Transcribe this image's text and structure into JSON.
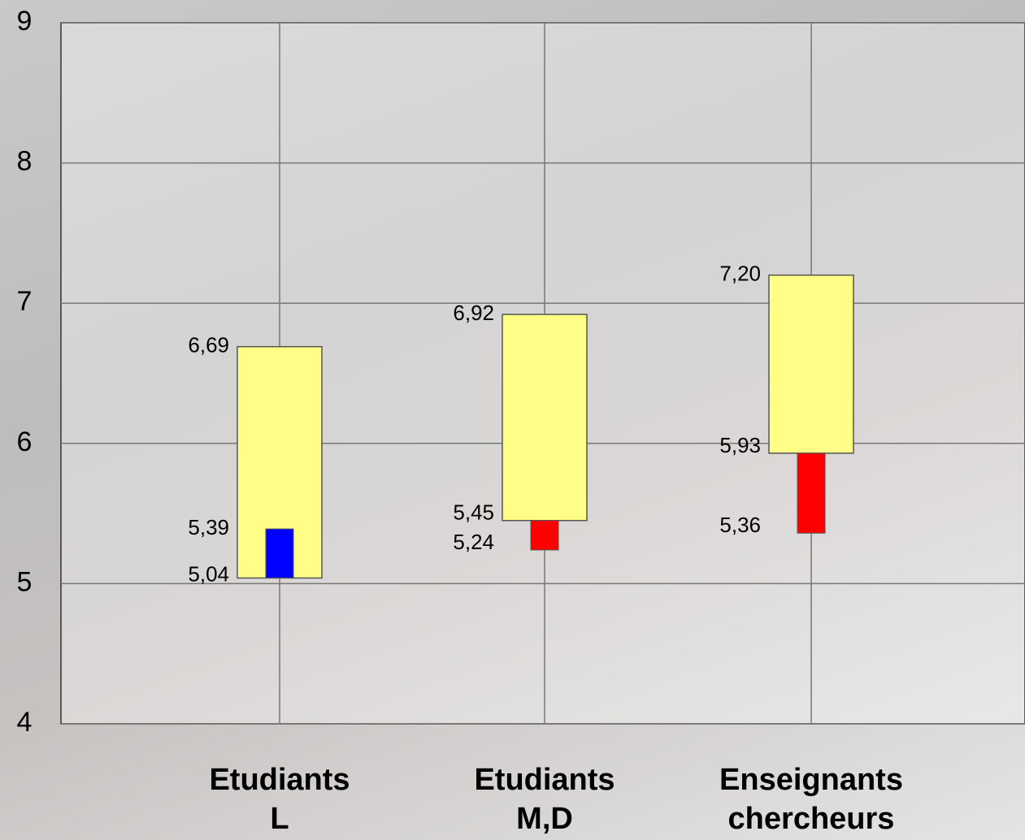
{
  "chart_data": {
    "type": "range_bar",
    "categories": [
      "Etudiants\nL",
      "Etudiants\nM,D",
      "Enseignants\nchercheurs"
    ],
    "series": [
      {
        "color": "#ffff88",
        "values": [
          [
            5.04,
            6.69
          ],
          [
            5.45,
            6.92
          ],
          [
            5.93,
            7.2
          ]
        ],
        "value_labels": [
          [
            "5,04",
            "6,69"
          ],
          [
            "5,45",
            "6,92"
          ],
          [
            "5,93",
            "7,20"
          ]
        ]
      },
      {
        "colors": [
          "#0000ff",
          "#ff0000",
          "#ff0000"
        ],
        "values": [
          5.39,
          5.24,
          5.36
        ],
        "value_labels": [
          "5,39",
          "5,24",
          "5,36"
        ]
      }
    ],
    "ylim": [
      4,
      9
    ],
    "yticks": [
      4,
      5,
      6,
      7,
      8,
      9
    ],
    "grid": true
  }
}
